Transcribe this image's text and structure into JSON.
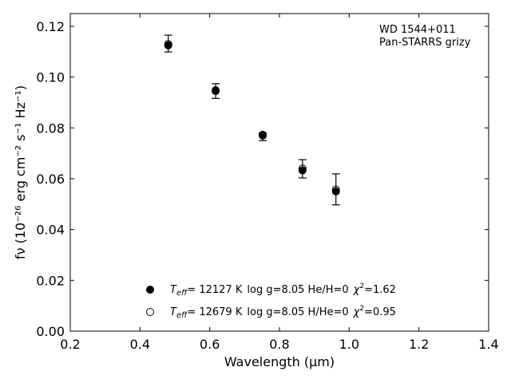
{
  "chart_data": {
    "type": "scatter",
    "title": "",
    "xlabel": "Wavelength (μm)",
    "ylabel": "fν (10⁻²⁶ erg cm⁻² s⁻¹ Hz⁻¹)",
    "xlim": [
      0.2,
      1.4
    ],
    "ylim": [
      0.0,
      0.125
    ],
    "x_ticks": [
      0.2,
      0.4,
      0.6,
      0.8,
      1.0,
      1.2,
      1.4
    ],
    "x_tick_labels": [
      "0.2",
      "0.4",
      "0.6",
      "0.8",
      "1.0",
      "1.2",
      "1.4"
    ],
    "y_ticks": [
      0.0,
      0.02,
      0.04,
      0.06,
      0.08,
      0.1,
      0.12
    ],
    "y_tick_labels": [
      "0.00",
      "0.02",
      "0.04",
      "0.06",
      "0.08",
      "0.10",
      "0.12"
    ],
    "grid": false,
    "annotation": {
      "lines": [
        "WD 1544+011",
        "Pan-STARRS grizy"
      ]
    },
    "observed": {
      "x": [
        0.481,
        0.617,
        0.752,
        0.866,
        0.962
      ],
      "y": [
        0.1132,
        0.0945,
        0.0765,
        0.0639,
        0.0558
      ],
      "yerr": [
        0.0033,
        0.0029,
        0.0015,
        0.0036,
        0.0061
      ]
    },
    "series": [
      {
        "name": "Teff= 12127 K log g=8.05 He/H=0 χ²=1.62",
        "marker": "filled-circle",
        "x": [
          0.481,
          0.617,
          0.752,
          0.866,
          0.962
        ],
        "y": [
          0.1125,
          0.0948,
          0.0773,
          0.0633,
          0.055
        ]
      },
      {
        "name": "Teff= 12679 K log g=8.05 H/He=0 χ²=0.95",
        "marker": "open-circle",
        "x": [
          0.481,
          0.617,
          0.752,
          0.866,
          0.962
        ],
        "y": [
          0.113,
          0.0945,
          0.077,
          0.064,
          0.0557
        ]
      }
    ],
    "legend": {
      "position": "bottom-center",
      "entries": [
        {
          "teff_value": "= 12127 K",
          "rest": "log g=8.05  He/H=0",
          "chi_value": "=1.62"
        },
        {
          "teff_value": "= 12679 K",
          "rest": "log g=8.05  H/He=0",
          "chi_value": "=0.95"
        }
      ]
    }
  }
}
